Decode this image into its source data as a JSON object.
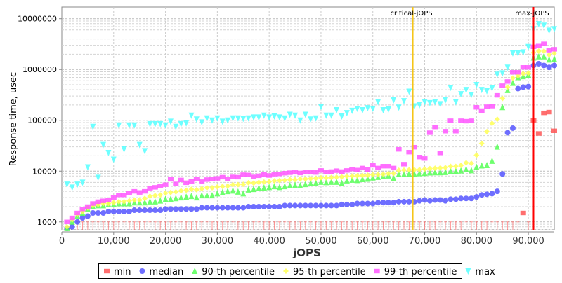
{
  "chart_data": {
    "type": "scatter",
    "title": "",
    "xlabel": "jOPS",
    "ylabel": "Response time, usec",
    "xlim": [
      0,
      95000
    ],
    "ylim": [
      700,
      17000000
    ],
    "y_scale": "log",
    "grid": true,
    "legend_position": "bottom",
    "x_ticks": [
      "0",
      "10,000",
      "20,000",
      "30,000",
      "40,000",
      "50,000",
      "60,000",
      "70,000",
      "80,000",
      "90,000"
    ],
    "y_ticks": [
      "1000",
      "10000",
      "100000",
      "1000000",
      "10000000"
    ],
    "markers": [
      {
        "label": "critical-jOPS",
        "x": 67700,
        "color": "#f5c518"
      },
      {
        "label": "max-jOPS",
        "x": 91000,
        "color": "#ff0000"
      }
    ],
    "x": [
      1000,
      2000,
      3000,
      4000,
      5000,
      6000,
      7000,
      8000,
      9000,
      10000,
      11000,
      12000,
      13000,
      14000,
      15000,
      16000,
      17000,
      18000,
      19000,
      20000,
      21000,
      22000,
      23000,
      24000,
      25000,
      26000,
      27000,
      28000,
      29000,
      30000,
      31000,
      32000,
      33000,
      34000,
      35000,
      36000,
      37000,
      38000,
      39000,
      40000,
      41000,
      42000,
      43000,
      44000,
      45000,
      46000,
      47000,
      48000,
      49000,
      50000,
      51000,
      52000,
      53000,
      54000,
      55000,
      56000,
      57000,
      58000,
      59000,
      60000,
      61000,
      62000,
      63000,
      64000,
      65000,
      66000,
      67000,
      68000,
      69000,
      70000,
      71000,
      72000,
      73000,
      74000,
      75000,
      76000,
      77000,
      78000,
      79000,
      80000,
      81000,
      82000,
      83000,
      84000,
      85000,
      86000,
      87000,
      88000,
      89000,
      90000,
      91000,
      92000,
      93000,
      94000,
      95000
    ],
    "series": [
      {
        "name": "min",
        "color": "#ff5555",
        "marker": "square",
        "values": [
          null,
          null,
          "below-axis",
          "below-axis",
          "below-axis",
          "below-axis",
          "below-axis",
          "below-axis",
          "below-axis",
          "below-axis",
          "below-axis",
          "below-axis",
          "below-axis",
          "below-axis",
          "below-axis",
          "below-axis",
          "below-axis",
          "below-axis",
          "below-axis",
          "below-axis",
          "below-axis",
          "below-axis",
          "below-axis",
          "below-axis",
          "below-axis",
          "below-axis",
          "below-axis",
          "below-axis",
          "below-axis",
          "below-axis",
          "below-axis",
          "below-axis",
          "below-axis",
          "below-axis",
          "below-axis",
          "below-axis",
          "below-axis",
          "below-axis",
          "below-axis",
          "below-axis",
          "below-axis",
          "below-axis",
          "below-axis",
          "below-axis",
          "below-axis",
          "below-axis",
          "below-axis",
          "below-axis",
          "below-axis",
          "below-axis",
          "below-axis",
          "below-axis",
          "below-axis",
          "below-axis",
          "below-axis",
          "below-axis",
          "below-axis",
          "below-axis",
          "below-axis",
          "below-axis",
          "below-axis",
          "below-axis",
          "below-axis",
          "below-axis",
          "below-axis",
          "below-axis",
          "below-axis",
          "below-axis",
          "below-axis",
          "below-axis",
          "below-axis",
          "below-axis",
          "below-axis",
          "below-axis",
          "below-axis",
          "below-axis",
          "below-axis",
          "below-axis",
          "below-axis",
          "below-axis",
          "below-axis",
          "below-axis",
          "below-axis",
          "below-axis",
          "below-axis",
          "below-axis",
          "below-axis",
          "below-axis",
          1500,
          "below-axis",
          100000,
          55000,
          140000,
          145000,
          62000
        ]
      },
      {
        "name": "median",
        "color": "#5555ff",
        "marker": "circle",
        "values": [
          750,
          800,
          1000,
          1200,
          1300,
          1500,
          1500,
          1500,
          1600,
          1600,
          1600,
          1600,
          1600,
          1700,
          1700,
          1700,
          1700,
          1700,
          1700,
          1800,
          1800,
          1800,
          1800,
          1800,
          1800,
          1800,
          1900,
          1900,
          1900,
          1900,
          1900,
          1900,
          1900,
          1900,
          1900,
          2000,
          2000,
          2000,
          2000,
          2000,
          2000,
          2000,
          2100,
          2100,
          2100,
          2100,
          2100,
          2100,
          2100,
          2100,
          2100,
          2100,
          2100,
          2200,
          2200,
          2200,
          2300,
          2300,
          2300,
          2300,
          2400,
          2400,
          2400,
          2400,
          2500,
          2500,
          2500,
          2500,
          2600,
          2700,
          2600,
          2700,
          2700,
          2600,
          2800,
          2800,
          2900,
          2900,
          2900,
          3100,
          3400,
          3500,
          3600,
          4000,
          8800,
          57000,
          70000,
          420000,
          450000,
          460000,
          1200000,
          1300000,
          1200000,
          1100000,
          1200000
        ]
      },
      {
        "name": "90-th percentile",
        "color": "#55ff55",
        "marker": "triangle-up",
        "values": [
          750,
          1000,
          1300,
          1500,
          1800,
          2000,
          2100,
          2100,
          2200,
          2200,
          2300,
          2300,
          2300,
          2400,
          2400,
          2400,
          2500,
          2500,
          2600,
          2800,
          2800,
          2900,
          3000,
          3100,
          3200,
          3000,
          3300,
          3300,
          3300,
          3600,
          3800,
          4000,
          4100,
          3900,
          3600,
          4300,
          4400,
          4600,
          4700,
          4800,
          5000,
          4800,
          5000,
          5200,
          5300,
          5200,
          5500,
          5700,
          5800,
          6100,
          6000,
          6100,
          6100,
          5800,
          6500,
          6700,
          6600,
          6900,
          7000,
          7400,
          7600,
          7900,
          8100,
          7300,
          8600,
          8600,
          8800,
          8700,
          9000,
          9100,
          9300,
          9400,
          9400,
          9500,
          10000,
          10100,
          10200,
          10800,
          10300,
          12000,
          12800,
          13000,
          15800,
          30000,
          180000,
          390000,
          540000,
          700000,
          730000,
          780000,
          1700000,
          1800000,
          1800000,
          1550000,
          1600000
        ]
      },
      {
        "name": "95-th percentile",
        "color": "#ffff55",
        "marker": "diamond",
        "values": [
          800,
          1100,
          1400,
          1600,
          1900,
          2100,
          2200,
          2300,
          2300,
          2400,
          2500,
          2500,
          2600,
          2700,
          2700,
          2900,
          3200,
          3300,
          3400,
          3700,
          3800,
          3900,
          4100,
          4200,
          4400,
          4300,
          4500,
          4700,
          4700,
          4900,
          5000,
          5100,
          5400,
          5400,
          5500,
          5900,
          5800,
          6000,
          6100,
          6200,
          6400,
          6500,
          6600,
          6800,
          6800,
          7000,
          7000,
          7100,
          7200,
          7400,
          7400,
          7500,
          7600,
          7700,
          7900,
          8000,
          8100,
          8200,
          8300,
          8500,
          8600,
          8700,
          8900,
          9000,
          10400,
          10500,
          10600,
          10600,
          10700,
          11000,
          11200,
          11400,
          11600,
          11700,
          12400,
          12400,
          13000,
          14600,
          14200,
          20600,
          35000,
          60000,
          87000,
          105000,
          270000,
          450000,
          680000,
          750000,
          830000,
          850000,
          2150000,
          2300000,
          2300000,
          1950000,
          2100000
        ]
      },
      {
        "name": "99-th percentile",
        "color": "#ff55ff",
        "marker": "square",
        "values": [
          1000,
          1200,
          1500,
          1800,
          2000,
          2300,
          2500,
          2600,
          2700,
          3000,
          3400,
          3400,
          3700,
          4000,
          3800,
          4000,
          4600,
          4800,
          5100,
          5400,
          6900,
          5600,
          6700,
          5900,
          6300,
          7000,
          6200,
          6800,
          7000,
          7200,
          7600,
          7000,
          7700,
          7600,
          8500,
          8400,
          7700,
          8100,
          8600,
          8200,
          8700,
          8800,
          9100,
          9300,
          9500,
          9200,
          9700,
          9500,
          9400,
          10300,
          9700,
          9800,
          10200,
          9800,
          10300,
          11000,
          10500,
          11500,
          10800,
          13000,
          11500,
          12500,
          12500,
          11500,
          26800,
          13700,
          23600,
          29500,
          18900,
          17700,
          57000,
          74000,
          22800,
          61000,
          98000,
          61000,
          98000,
          96000,
          98000,
          180000,
          155000,
          185000,
          190000,
          310000,
          480000,
          580000,
          880000,
          880000,
          1100000,
          1100000,
          2800000,
          2900000,
          3200000,
          2400000,
          2500000
        ]
      },
      {
        "name": "max",
        "color": "#55ffff",
        "marker": "triangle-down",
        "values": [
          5500,
          4800,
          5500,
          6000,
          12000,
          75000,
          7500,
          33000,
          23000,
          17000,
          80000,
          27000,
          80000,
          80000,
          33000,
          25000,
          85000,
          85000,
          85000,
          80000,
          95000,
          75000,
          85000,
          88000,
          125000,
          105000,
          92000,
          110000,
          100000,
          110000,
          95000,
          100000,
          110000,
          110000,
          108000,
          110000,
          115000,
          115000,
          125000,
          115000,
          120000,
          115000,
          110000,
          130000,
          125000,
          100000,
          130000,
          105000,
          110000,
          185000,
          125000,
          125000,
          160000,
          120000,
          140000,
          155000,
          170000,
          160000,
          175000,
          170000,
          230000,
          160000,
          165000,
          250000,
          180000,
          240000,
          370000,
          190000,
          200000,
          230000,
          220000,
          230000,
          210000,
          250000,
          440000,
          230000,
          330000,
          400000,
          320000,
          500000,
          400000,
          380000,
          430000,
          800000,
          850000,
          1100000,
          2100000,
          2100000,
          2200000,
          2800000,
          6300000,
          7900000,
          7400000,
          5900000,
          6300000
        ]
      }
    ]
  }
}
